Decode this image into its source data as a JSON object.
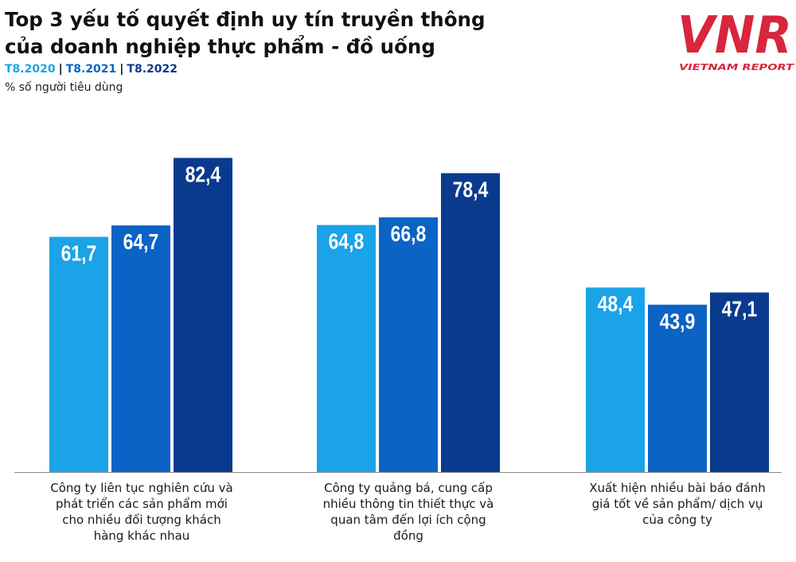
{
  "header": {
    "title_line1": "Top 3 yếu tố quyết định uy tín truyền thông",
    "title_line2": "của doanh nghiệp thực phẩm - đồ uống",
    "unit": "% số người tiêu dùng"
  },
  "logo": {
    "mark": "VNR",
    "text": "VIETNAM REPORT",
    "color": "#d7263d"
  },
  "colors": {
    "separator": "#111111",
    "axis": "#8a8a8a",
    "value_text": "#ffffff"
  },
  "chart_data": {
    "type": "bar",
    "categories": [
      "Công ty liên tục nghiên cứu và phát triển các sản phẩm mới cho nhiều đối tượng khách hàng khác nhau",
      "Công ty quảng bá, cung cấp nhiều thông tin thiết thực và quan tâm đến lợi ích cộng đồng",
      "Xuất hiện nhiều bài báo đánh giá tốt về sản phẩm/ dịch vụ của công ty"
    ],
    "category_lines": [
      [
        "Công ty liên tục nghiên cứu và",
        "phát triển các sản phẩm mới",
        "cho nhiều đối tượng khách",
        "hàng khác nhau"
      ],
      [
        "Công ty quảng bá, cung cấp",
        "nhiều thông tin thiết thực và",
        "quan tâm đến lợi ích cộng",
        "đồng"
      ],
      [
        "Xuất hiện nhiều bài báo đánh",
        "giá tốt về sản phẩm/ dịch vụ",
        "của công ty"
      ]
    ],
    "series": [
      {
        "name": "T8.2020",
        "color": "#1aa3e6",
        "values": [
          61.7,
          64.8,
          48.4
        ],
        "labels": [
          "61,7",
          "64,8",
          "48,4"
        ]
      },
      {
        "name": "T8.2021",
        "color": "#0b63c6",
        "values": [
          64.7,
          66.8,
          43.9
        ],
        "labels": [
          "64,7",
          "66,8",
          "43,9"
        ]
      },
      {
        "name": "T8.2022",
        "color": "#0a3a8e",
        "values": [
          82.4,
          78.4,
          47.1
        ],
        "labels": [
          "82,4",
          "78,4",
          "47,1"
        ]
      }
    ],
    "ylim": [
      0,
      100
    ],
    "grid": false,
    "legend_position": "top-left"
  }
}
